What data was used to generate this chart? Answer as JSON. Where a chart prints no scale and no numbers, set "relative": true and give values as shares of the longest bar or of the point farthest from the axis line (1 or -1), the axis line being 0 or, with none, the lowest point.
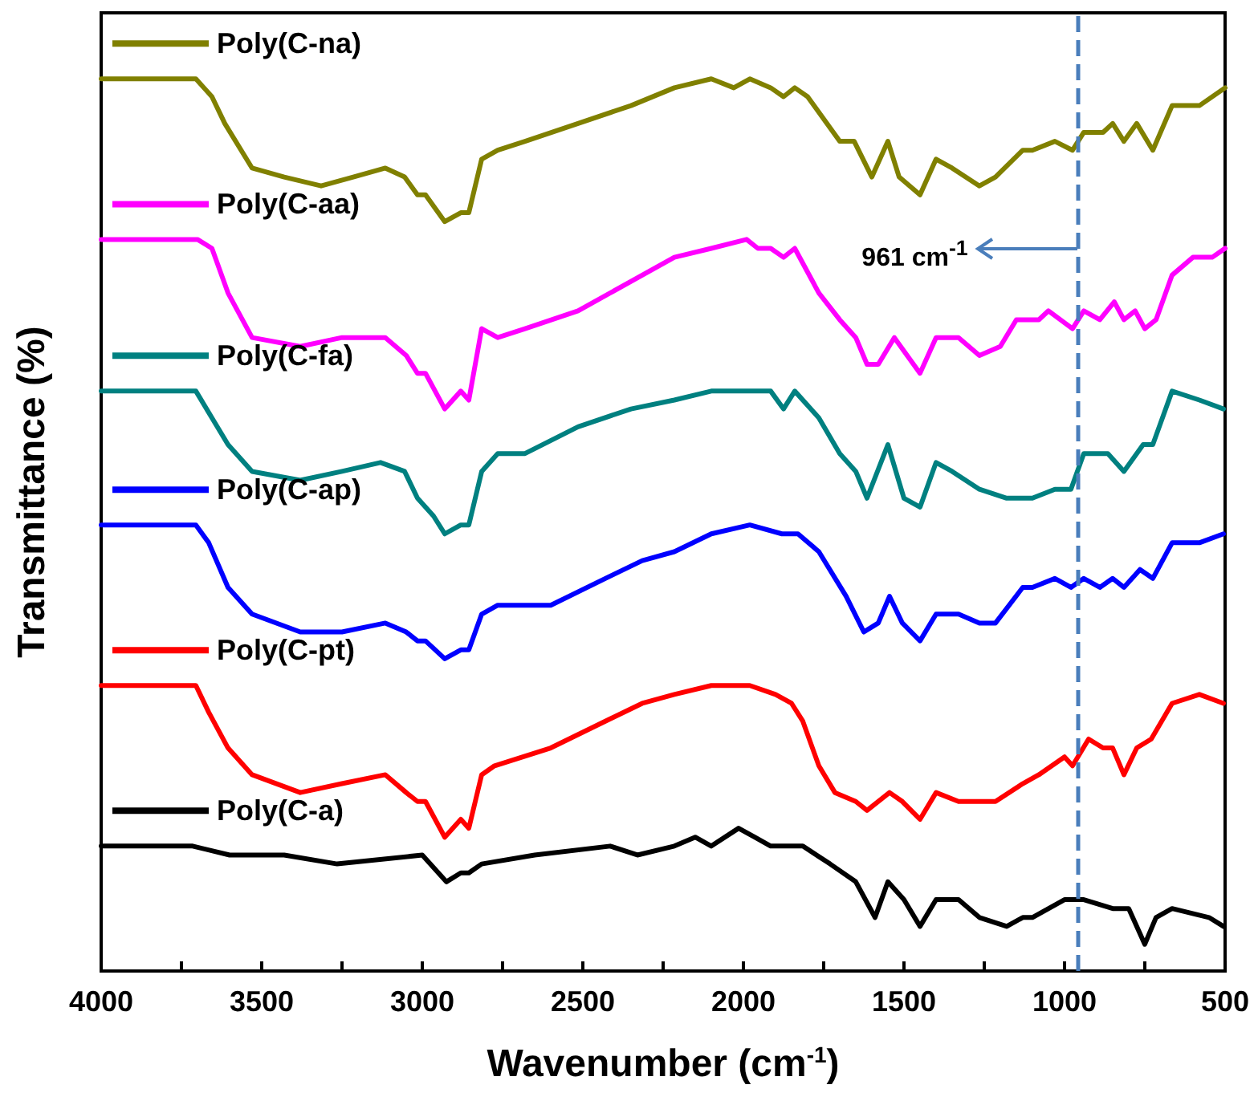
{
  "chart_data": {
    "type": "line",
    "xlabel": "Wavenumber (cm$^{-1}$)",
    "ylabel": "Transmittance (%)",
    "relative": true,
    "legend": "left",
    "xlim": [
      4000,
      500
    ],
    "xticks": [
      4000,
      {
        "value": 3750,
        "label": null
      },
      3500,
      {
        "value": 3250,
        "label": null
      },
      3000,
      {
        "value": 2750,
        "label": null
      },
      2500,
      {
        "value": 2250,
        "label": null
      },
      2000,
      {
        "value": 1750,
        "label": null
      },
      1500,
      {
        "value": 1250,
        "label": null
      },
      1000,
      {
        "value": 750,
        "label": null
      },
      500
    ],
    "ref_lines": [
      {
        "axis": "x",
        "value": 961,
        "label": "961 cm$^{-1}$",
        "color": "#4a7ebb",
        "line_style": "dashed"
      }
    ],
    "series": [
      {
        "name": "Poly(C-na)",
        "color": "#808000",
        "x": [
          4000,
          3705,
          3655,
          3615,
          3530,
          3430,
          3315,
          3215,
          3115,
          3055,
          3015,
          2990,
          2930,
          2880,
          2855,
          2815,
          2765,
          2680,
          2515,
          2350,
          2215,
          2100,
          2030,
          1980,
          1915,
          1875,
          1840,
          1800,
          1700,
          1655,
          1600,
          1550,
          1515,
          1450,
          1400,
          1350,
          1265,
          1215,
          1130,
          1100,
          1030,
          975,
          940,
          880,
          850,
          815,
          775,
          725,
          665,
          580,
          500
        ],
        "values": [
          1.0,
          1.0,
          0.98,
          0.95,
          0.9,
          0.89,
          0.88,
          0.89,
          0.9,
          0.89,
          0.87,
          0.87,
          0.84,
          0.85,
          0.85,
          0.91,
          0.92,
          0.93,
          0.95,
          0.97,
          0.99,
          1.0,
          0.99,
          1.0,
          0.99,
          0.98,
          0.99,
          0.98,
          0.93,
          0.93,
          0.89,
          0.93,
          0.89,
          0.87,
          0.91,
          0.9,
          0.88,
          0.89,
          0.92,
          0.92,
          0.93,
          0.92,
          0.94,
          0.94,
          0.95,
          0.93,
          0.95,
          0.92,
          0.97,
          0.97,
          0.99
        ]
      },
      {
        "name": "Poly(C-aa)",
        "color": "#ff00ff",
        "x": [
          4000,
          3700,
          3655,
          3605,
          3530,
          3380,
          3250,
          3115,
          3050,
          3015,
          2990,
          2930,
          2880,
          2855,
          2815,
          2765,
          2680,
          2515,
          2315,
          2215,
          2100,
          1990,
          1955,
          1915,
          1875,
          1840,
          1765,
          1700,
          1650,
          1615,
          1580,
          1530,
          1450,
          1400,
          1330,
          1265,
          1200,
          1150,
          1080,
          1050,
          975,
          940,
          890,
          845,
          815,
          780,
          750,
          715,
          665,
          600,
          540,
          500
        ],
        "values": [
          0.82,
          0.82,
          0.81,
          0.76,
          0.71,
          0.7,
          0.71,
          0.71,
          0.69,
          0.67,
          0.67,
          0.63,
          0.65,
          0.64,
          0.72,
          0.71,
          0.72,
          0.74,
          0.78,
          0.8,
          0.81,
          0.82,
          0.81,
          0.81,
          0.8,
          0.81,
          0.76,
          0.73,
          0.71,
          0.68,
          0.68,
          0.71,
          0.67,
          0.71,
          0.71,
          0.69,
          0.7,
          0.73,
          0.73,
          0.74,
          0.72,
          0.74,
          0.73,
          0.75,
          0.73,
          0.74,
          0.72,
          0.73,
          0.78,
          0.8,
          0.8,
          0.81
        ]
      },
      {
        "name": "Poly(C-fa)",
        "color": "#008080",
        "x": [
          4000,
          3705,
          3655,
          3605,
          3530,
          3380,
          3250,
          3130,
          3055,
          3015,
          2965,
          2930,
          2880,
          2855,
          2815,
          2765,
          2680,
          2515,
          2350,
          2215,
          2100,
          2025,
          1915,
          1875,
          1840,
          1765,
          1700,
          1650,
          1615,
          1550,
          1500,
          1450,
          1400,
          1350,
          1265,
          1180,
          1100,
          1030,
          980,
          940,
          915,
          865,
          815,
          755,
          725,
          665,
          580,
          505
        ],
        "values": [
          0.65,
          0.65,
          0.62,
          0.59,
          0.56,
          0.55,
          0.56,
          0.57,
          0.56,
          0.53,
          0.51,
          0.49,
          0.5,
          0.5,
          0.56,
          0.58,
          0.58,
          0.61,
          0.63,
          0.64,
          0.65,
          0.65,
          0.65,
          0.63,
          0.65,
          0.62,
          0.58,
          0.56,
          0.53,
          0.59,
          0.53,
          0.52,
          0.57,
          0.56,
          0.54,
          0.53,
          0.53,
          0.54,
          0.54,
          0.58,
          0.58,
          0.58,
          0.56,
          0.59,
          0.59,
          0.65,
          0.64,
          0.63
        ]
      },
      {
        "name": "Poly(C-ap)",
        "color": "#0000ff",
        "x": [
          4000,
          3705,
          3665,
          3605,
          3530,
          3380,
          3250,
          3115,
          3050,
          3015,
          2990,
          2930,
          2880,
          2855,
          2815,
          2765,
          2600,
          2430,
          2315,
          2215,
          2100,
          1980,
          1880,
          1830,
          1765,
          1680,
          1625,
          1580,
          1545,
          1505,
          1450,
          1400,
          1330,
          1265,
          1215,
          1130,
          1100,
          1030,
          980,
          940,
          890,
          850,
          815,
          765,
          725,
          665,
          580,
          505
        ],
        "values": [
          0.5,
          0.5,
          0.48,
          0.43,
          0.4,
          0.38,
          0.38,
          0.39,
          0.38,
          0.37,
          0.37,
          0.35,
          0.36,
          0.36,
          0.4,
          0.41,
          0.41,
          0.44,
          0.46,
          0.47,
          0.49,
          0.5,
          0.49,
          0.49,
          0.47,
          0.42,
          0.38,
          0.39,
          0.42,
          0.39,
          0.37,
          0.4,
          0.4,
          0.39,
          0.39,
          0.43,
          0.43,
          0.44,
          0.43,
          0.44,
          0.43,
          0.44,
          0.43,
          0.45,
          0.44,
          0.48,
          0.48,
          0.49
        ]
      },
      {
        "name": "Poly(C-pt)",
        "color": "#ff0000",
        "x": [
          4000,
          3705,
          3665,
          3605,
          3530,
          3380,
          3250,
          3115,
          3050,
          3015,
          2990,
          2930,
          2880,
          2855,
          2815,
          2775,
          2600,
          2430,
          2315,
          2215,
          2100,
          1980,
          1900,
          1850,
          1815,
          1765,
          1715,
          1650,
          1615,
          1545,
          1505,
          1450,
          1400,
          1330,
          1265,
          1215,
          1130,
          1080,
          1000,
          975,
          925,
          880,
          850,
          815,
          775,
          730,
          665,
          580,
          505
        ],
        "values": [
          0.32,
          0.32,
          0.29,
          0.25,
          0.22,
          0.2,
          0.21,
          0.22,
          0.2,
          0.19,
          0.19,
          0.15,
          0.17,
          0.16,
          0.22,
          0.23,
          0.25,
          0.28,
          0.3,
          0.31,
          0.32,
          0.32,
          0.31,
          0.3,
          0.28,
          0.23,
          0.2,
          0.19,
          0.18,
          0.2,
          0.19,
          0.17,
          0.2,
          0.19,
          0.19,
          0.19,
          0.21,
          0.22,
          0.24,
          0.23,
          0.26,
          0.25,
          0.25,
          0.22,
          0.25,
          0.26,
          0.3,
          0.31,
          0.3
        ]
      },
      {
        "name": "Poly(C-a)",
        "color": "#000000",
        "x": [
          4000,
          3715,
          3600,
          3430,
          3265,
          3000,
          2925,
          2880,
          2855,
          2815,
          2650,
          2415,
          2330,
          2215,
          2150,
          2100,
          2015,
          1965,
          1915,
          1815,
          1730,
          1650,
          1590,
          1550,
          1500,
          1450,
          1400,
          1330,
          1265,
          1180,
          1130,
          1100,
          1000,
          940,
          850,
          800,
          750,
          715,
          665,
          550,
          505
        ],
        "values": [
          0.14,
          0.14,
          0.13,
          0.13,
          0.12,
          0.13,
          0.1,
          0.11,
          0.11,
          0.12,
          0.13,
          0.14,
          0.13,
          0.14,
          0.15,
          0.14,
          0.16,
          0.15,
          0.14,
          0.14,
          0.12,
          0.1,
          0.06,
          0.1,
          0.08,
          0.05,
          0.08,
          0.08,
          0.06,
          0.05,
          0.06,
          0.06,
          0.08,
          0.08,
          0.07,
          0.07,
          0.03,
          0.06,
          0.07,
          0.06,
          0.05
        ]
      }
    ]
  }
}
